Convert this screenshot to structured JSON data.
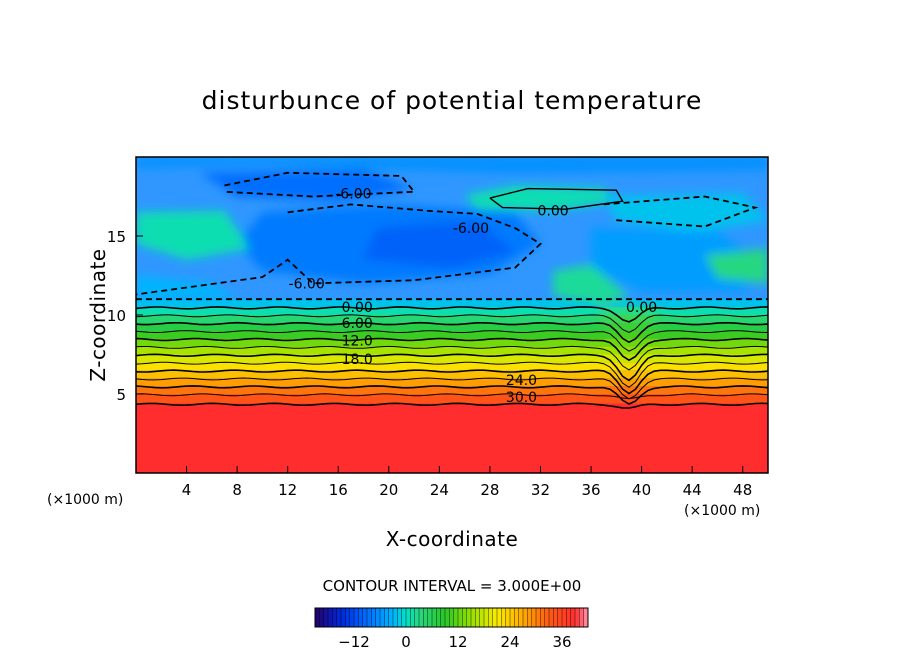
{
  "chart_data": {
    "type": "contour",
    "title": "disturbunce of potential temperature",
    "xlabel": "X-coordinate",
    "ylabel": "Z-coordinate",
    "x_unit": "(×1000 m)",
    "xlim": [
      0,
      50
    ],
    "ylim": [
      0,
      20
    ],
    "x_ticks": [
      4,
      8,
      12,
      16,
      20,
      24,
      28,
      32,
      36,
      40,
      44,
      48
    ],
    "y_ticks": [
      5,
      10,
      15
    ],
    "contour_interval_text": "CONTOUR INTERVAL = 3.000E+00",
    "colorbar": {
      "ticks": [
        -12,
        0,
        12,
        24,
        36
      ],
      "range": [
        -21,
        42
      ]
    },
    "contour_labels": [
      {
        "text": "6.00",
        "x": 17.2,
        "y": 17.7,
        "negative": true
      },
      {
        "text": "6.00",
        "x": 26.5,
        "y": 15.5,
        "negative": true
      },
      {
        "text": "6.00",
        "x": 13.5,
        "y": 12.0,
        "negative": true
      },
      {
        "text": "0.00",
        "x": 33.0,
        "y": 16.6,
        "negative": false
      },
      {
        "text": "0.00",
        "x": 17.5,
        "y": 10.5,
        "negative": false
      },
      {
        "text": "0.00",
        "x": 40.0,
        "y": 10.5,
        "negative": false
      },
      {
        "text": "6.00",
        "x": 17.5,
        "y": 9.5,
        "negative": false
      },
      {
        "text": "12.0",
        "x": 17.5,
        "y": 8.4,
        "negative": false
      },
      {
        "text": "18.0",
        "x": 17.5,
        "y": 7.2,
        "negative": false
      },
      {
        "text": "24.0",
        "x": 30.5,
        "y": 5.9,
        "negative": false
      },
      {
        "text": "30.0",
        "x": 30.5,
        "y": 4.8,
        "negative": false
      }
    ]
  }
}
